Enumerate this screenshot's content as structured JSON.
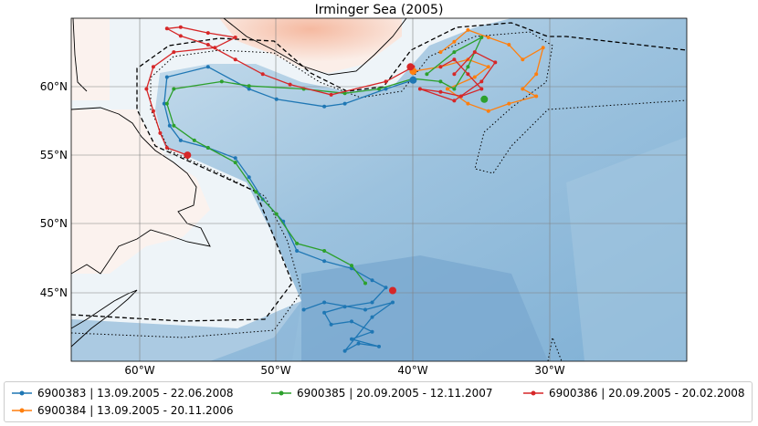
{
  "title": "Irminger Sea (2005)",
  "lon_ticks": [
    "60°W",
    "50°W",
    "40°W",
    "30°W"
  ],
  "lat_ticks": [
    "60°N",
    "55°N",
    "50°N",
    "45°N"
  ],
  "extent": {
    "lon": [
      -65,
      -20
    ],
    "lat": [
      41.5,
      64.8
    ]
  },
  "colors": {
    "6900383": "#1f77b4",
    "6900384": "#ff7f0e",
    "6900385": "#2ca02c",
    "6900386": "#d62728"
  },
  "legend": [
    {
      "id": "6900383",
      "label": "6900383 | 13.09.2005 - 22.06.2008"
    },
    {
      "id": "6900385",
      "label": "6900385 | 20.09.2005 - 12.11.2007"
    },
    {
      "id": "6900386",
      "label": "6900386 | 20.09.2005 - 20.02.2008"
    },
    {
      "id": "6900384",
      "label": "6900384 | 13.09.2005 - 20.11.2006"
    }
  ],
  "tracks": {
    "6900383": [
      [
        -40,
        60.6
      ],
      [
        -42,
        60
      ],
      [
        -45,
        59
      ],
      [
        -46.5,
        58.8
      ],
      [
        -50,
        59.3
      ],
      [
        -52,
        60
      ],
      [
        -55,
        61.5
      ],
      [
        -58,
        60.8
      ],
      [
        -58.2,
        59
      ],
      [
        -57.8,
        57.5
      ],
      [
        -57,
        56.5
      ],
      [
        -55,
        56
      ],
      [
        -53,
        55.3
      ],
      [
        -52,
        54
      ],
      [
        -51,
        52.5
      ],
      [
        -49.5,
        51
      ],
      [
        -48.5,
        49
      ],
      [
        -46.5,
        48.3
      ],
      [
        -44.5,
        47.8
      ],
      [
        -43,
        47
      ],
      [
        -42,
        46.5
      ],
      [
        -43,
        45.5
      ],
      [
        -45,
        45.2
      ],
      [
        -46.5,
        44.8
      ],
      [
        -46,
        44
      ],
      [
        -44.5,
        44.2
      ],
      [
        -43,
        43.5
      ],
      [
        -44.5,
        43
      ],
      [
        -42.5,
        42.5
      ],
      [
        -44,
        42.7
      ],
      [
        -45,
        42.2
      ],
      [
        -43,
        44.5
      ],
      [
        -41.5,
        45.5
      ],
      [
        -43.5,
        45
      ],
      [
        -46.5,
        45.5
      ],
      [
        -48,
        45
      ]
    ],
    "6900385": [
      [
        -39,
        61
      ],
      [
        -37,
        62.5
      ],
      [
        -35,
        63.5
      ],
      [
        -36,
        61.5
      ],
      [
        -37,
        60
      ],
      [
        -38,
        60.5
      ],
      [
        -40,
        60.7
      ],
      [
        -42.5,
        60
      ],
      [
        -45,
        59.7
      ],
      [
        -48,
        60
      ],
      [
        -52,
        60.2
      ],
      [
        -54,
        60.5
      ],
      [
        -57.5,
        60
      ],
      [
        -58,
        59
      ],
      [
        -57.5,
        57.5
      ],
      [
        -56,
        56.5
      ],
      [
        -55,
        56
      ],
      [
        -53,
        55
      ],
      [
        -51.5,
        53
      ],
      [
        -50,
        51.5
      ],
      [
        -48.5,
        49.5
      ],
      [
        -46.5,
        49
      ],
      [
        -44.5,
        48
      ],
      [
        -43.5,
        46.8
      ]
    ],
    "6900384": [
      [
        -38,
        62.5
      ],
      [
        -37,
        63.2
      ],
      [
        -36,
        64
      ],
      [
        -34.5,
        63.5
      ],
      [
        -33,
        63
      ],
      [
        -32,
        62
      ],
      [
        -30.5,
        62.8
      ],
      [
        -31,
        61
      ],
      [
        -32,
        60
      ],
      [
        -31,
        59.5
      ],
      [
        -33,
        59
      ],
      [
        -34.5,
        58.5
      ],
      [
        -36,
        59
      ],
      [
        -37.5,
        60
      ],
      [
        -35.5,
        60.8
      ],
      [
        -34.5,
        61.5
      ],
      [
        -36,
        62
      ],
      [
        -38,
        61.5
      ],
      [
        -40,
        61.2
      ]
    ],
    "6900386": [
      [
        -40,
        61.5
      ],
      [
        -42,
        60.5
      ],
      [
        -46,
        59.6
      ],
      [
        -49,
        60.3
      ],
      [
        -51,
        61
      ],
      [
        -53,
        62
      ],
      [
        -55,
        63
      ],
      [
        -57,
        63.6
      ],
      [
        -58,
        64.1
      ],
      [
        -57,
        64.2
      ],
      [
        -55,
        63.8
      ],
      [
        -53,
        63.5
      ],
      [
        -54.5,
        62.8
      ],
      [
        -57.5,
        62.5
      ],
      [
        -59,
        61.5
      ],
      [
        -59.5,
        60
      ],
      [
        -59,
        58.5
      ],
      [
        -58.5,
        57
      ],
      [
        -58,
        56
      ],
      [
        -56.5,
        55.5
      ]
    ],
    "6900386_east": [
      [
        -38,
        61.5
      ],
      [
        -37,
        62
      ],
      [
        -36,
        61
      ],
      [
        -35,
        60
      ],
      [
        -36.5,
        59.5
      ],
      [
        -38,
        59.8
      ],
      [
        -39.5,
        60
      ],
      [
        -37,
        59.2
      ],
      [
        -35,
        60.5
      ],
      [
        -34,
        61.8
      ],
      [
        -35.5,
        62.5
      ],
      [
        -37,
        61
      ]
    ]
  },
  "end_markers": [
    {
      "id": "6900383",
      "lon": -40,
      "lat": 60.6
    },
    {
      "id": "6900385",
      "lon": -34.8,
      "lat": 59.3
    },
    {
      "id": "6900384",
      "lon": -40,
      "lat": 61.2
    },
    {
      "id": "6900386",
      "lon": -56.5,
      "lat": 55.5
    },
    {
      "id": "6900386",
      "lon": -41.5,
      "lat": 46.3
    },
    {
      "id": "6900386",
      "lon": -40.2,
      "lat": 61.5
    }
  ]
}
